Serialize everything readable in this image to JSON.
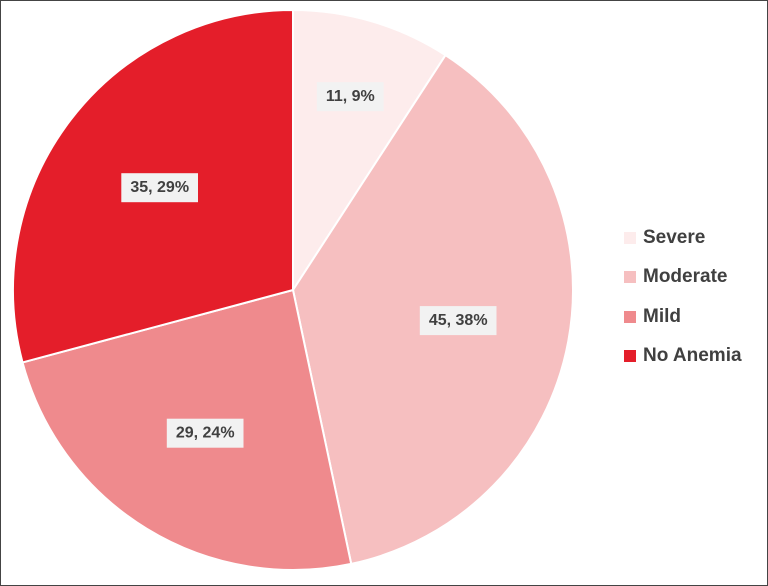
{
  "chart_data": {
    "type": "pie",
    "title": "",
    "series": [
      {
        "name": "Severe",
        "value": 11,
        "percent": "9%",
        "data_label": "11, 9%",
        "color": "#fdecec"
      },
      {
        "name": "Moderate",
        "value": 45,
        "percent": "38%",
        "data_label": "45, 38%",
        "color": "#f6bfc0"
      },
      {
        "name": "Mild",
        "value": 29,
        "percent": "24%",
        "data_label": "29, 24%",
        "color": "#ef8a8d"
      },
      {
        "name": "No Anemia",
        "value": 35,
        "percent": "29%",
        "data_label": "35, 29%",
        "color": "#e41e2a"
      }
    ],
    "start_angle": "12 o'clock",
    "direction": "clockwise",
    "legend": {
      "position": "right",
      "items": [
        "Severe",
        "Moderate",
        "Mild",
        "No Anemia"
      ]
    }
  }
}
